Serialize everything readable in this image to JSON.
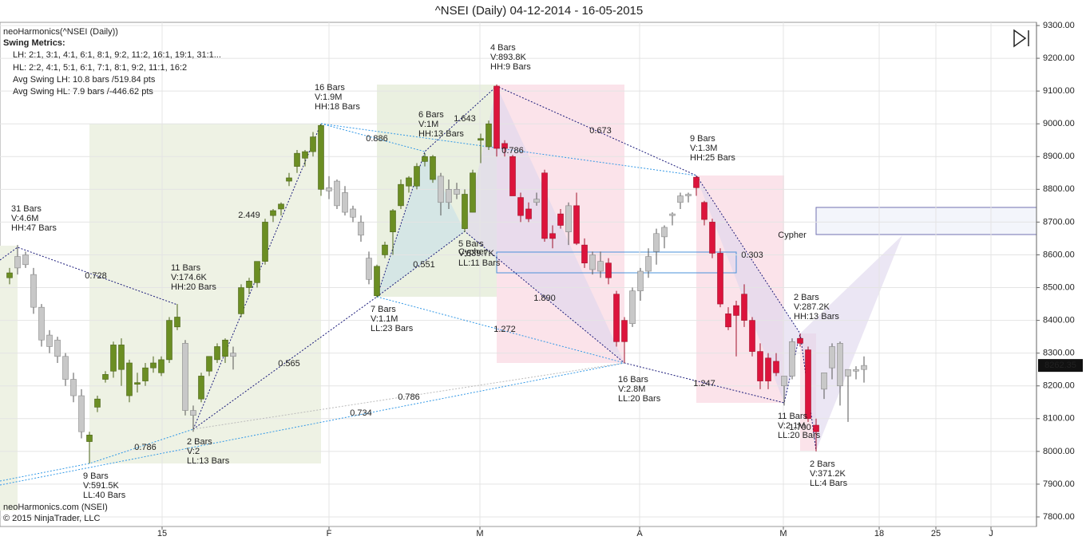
{
  "chart_data": {
    "type": "candlestick",
    "title": "^NSEI (Daily)  04-12-2014 - 16-05-2015",
    "indicator": "neoHarmonics(^NSEI (Daily))",
    "metrics_title": "Swing Metrics:",
    "metrics": [
      "LH: 2:1, 3:1, 4:1, 6:1, 8:1, 9:2, 11:2, 16:1, 19:1, 31:1...",
      "HL: 2:2, 4:1, 5:1, 6:1, 7:1, 8:1, 9:2, 11:1, 16:2",
      "Avg Swing LH: 10.8 bars /519.84 pts",
      "Avg Swing HL: 7.9 bars /-446.62 pts"
    ],
    "footer": [
      "neoHarmonics.com (NSEI)",
      "© 2015 NinjaTrader, LLC"
    ],
    "colors": {
      "up": "#6b8e23",
      "down": "#dc143c",
      "neutral": "#c8c8c8"
    },
    "candles": [
      [
        8530,
        8560,
        8510,
        8545
      ],
      [
        8560,
        8630,
        8540,
        8595
      ],
      [
        8600,
        8610,
        8560,
        8570
      ],
      [
        8540,
        8560,
        8420,
        8440
      ],
      [
        8440,
        8450,
        8320,
        8340
      ],
      [
        8355,
        8370,
        8300,
        8320
      ],
      [
        8340,
        8350,
        8270,
        8290
      ],
      [
        8290,
        8300,
        8200,
        8220
      ],
      [
        8220,
        8240,
        8150,
        8170
      ],
      [
        8170,
        8190,
        8040,
        8060
      ],
      [
        8030,
        8060,
        7963,
        8050
      ],
      [
        8135,
        8170,
        8120,
        8160
      ],
      [
        8220,
        8245,
        8210,
        8235
      ],
      [
        8245,
        8335,
        8225,
        8325
      ],
      [
        8250,
        8345,
        8200,
        8325
      ],
      [
        8170,
        8280,
        8150,
        8270
      ],
      [
        8205,
        8240,
        8180,
        8210
      ],
      [
        8215,
        8270,
        8200,
        8255
      ],
      [
        8255,
        8290,
        8240,
        8270
      ],
      [
        8240,
        8290,
        8230,
        8280
      ],
      [
        8280,
        8410,
        8270,
        8400
      ],
      [
        8380,
        8450,
        8370,
        8410
      ],
      [
        8330,
        8340,
        8110,
        8125
      ],
      [
        8125,
        8140,
        8060,
        8110
      ],
      [
        8160,
        8240,
        8150,
        8230
      ],
      [
        8245,
        8290,
        8230,
        8290
      ],
      [
        8280,
        8330,
        8270,
        8320
      ],
      [
        8290,
        8345,
        8270,
        8340
      ],
      [
        8300,
        8320,
        8250,
        8290
      ],
      [
        8420,
        8510,
        8410,
        8500
      ],
      [
        8500,
        8530,
        8480,
        8520
      ],
      [
        8515,
        8580,
        8500,
        8580
      ],
      [
        8580,
        8710,
        8570,
        8700
      ],
      [
        8720,
        8740,
        8700,
        8735
      ],
      [
        8740,
        8760,
        8720,
        8755
      ],
      [
        8825,
        8850,
        8810,
        8835
      ],
      [
        8870,
        8920,
        8850,
        8910
      ],
      [
        8895,
        8920,
        8870,
        8915
      ],
      [
        8915,
        8975,
        8900,
        8960
      ],
      [
        8800,
        9000,
        8780,
        8995
      ],
      [
        8805,
        8840,
        8770,
        8795
      ],
      [
        8825,
        8830,
        8740,
        8750
      ],
      [
        8790,
        8810,
        8720,
        8730
      ],
      [
        8740,
        8750,
        8700,
        8715
      ],
      [
        8700,
        8720,
        8640,
        8660
      ],
      [
        8590,
        8610,
        8510,
        8525
      ],
      [
        8475,
        8570,
        8470,
        8565
      ],
      [
        8600,
        8640,
        8590,
        8630
      ],
      [
        8670,
        8740,
        8600,
        8735
      ],
      [
        8750,
        8830,
        8740,
        8815
      ],
      [
        8810,
        8840,
        8790,
        8835
      ],
      [
        8810,
        8880,
        8800,
        8870
      ],
      [
        8885,
        8910,
        8870,
        8900
      ],
      [
        8830,
        8905,
        8820,
        8900
      ],
      [
        8840,
        8850,
        8720,
        8760
      ],
      [
        8800,
        8830,
        8740,
        8760
      ],
      [
        8800,
        8820,
        8770,
        8785
      ],
      [
        8680,
        8800,
        8670,
        8785
      ],
      [
        8730,
        8860,
        8730,
        8850
      ],
      [
        8950,
        8970,
        8880,
        8955
      ],
      [
        8930,
        9010,
        8920,
        9000
      ],
      [
        9115,
        9120,
        8900,
        8925
      ],
      [
        8940,
        8950,
        8900,
        8925
      ],
      [
        8900,
        8905,
        8780,
        8780
      ],
      [
        8775,
        8790,
        8700,
        8720
      ],
      [
        8740,
        8760,
        8700,
        8710
      ],
      [
        8770,
        8790,
        8750,
        8760
      ],
      [
        8850,
        8860,
        8640,
        8650
      ],
      [
        8665,
        8690,
        8620,
        8650
      ],
      [
        8725,
        8740,
        8680,
        8690
      ],
      [
        8670,
        8760,
        8630,
        8750
      ],
      [
        8750,
        8790,
        8630,
        8635
      ],
      [
        8630,
        8650,
        8560,
        8575
      ],
      [
        8600,
        8610,
        8540,
        8555
      ],
      [
        8580,
        8610,
        8530,
        8550
      ],
      [
        8575,
        8590,
        8510,
        8530
      ],
      [
        8480,
        8490,
        8320,
        8335
      ],
      [
        8400,
        8410,
        8270,
        8335
      ],
      [
        8390,
        8500,
        8380,
        8490
      ],
      [
        8490,
        8560,
        8460,
        8550
      ],
      [
        8550,
        8620,
        8530,
        8595
      ],
      [
        8610,
        8680,
        8570,
        8665
      ],
      [
        8655,
        8690,
        8620,
        8684
      ],
      [
        8720,
        8730,
        8690,
        8725
      ],
      [
        8760,
        8790,
        8740,
        8780
      ],
      [
        8780,
        8790,
        8760,
        8785
      ],
      [
        8837,
        8842,
        8780,
        8805
      ],
      [
        8760,
        8765,
        8690,
        8708
      ],
      [
        8700,
        8710,
        8590,
        8605
      ],
      [
        8605,
        8620,
        8440,
        8450
      ],
      [
        8420,
        8440,
        8370,
        8380
      ],
      [
        8445,
        8460,
        8290,
        8415
      ],
      [
        8480,
        8510,
        8380,
        8400
      ],
      [
        8400,
        8410,
        8290,
        8305
      ],
      [
        8305,
        8330,
        8190,
        8215
      ],
      [
        8285,
        8300,
        8190,
        8215
      ],
      [
        8275,
        8300,
        8230,
        8240
      ],
      [
        8200,
        8230,
        8140,
        8230
      ],
      [
        8230,
        8345,
        8220,
        8335
      ],
      [
        8345,
        8360,
        8320,
        8330
      ],
      [
        8310,
        8320,
        8090,
        8100
      ],
      [
        8080,
        8100,
        8000,
        8060
      ],
      [
        8190,
        8240,
        8160,
        8240
      ],
      [
        8255,
        8330,
        8220,
        8320
      ],
      [
        8330,
        8335,
        8140,
        8200
      ],
      [
        8230,
        8250,
        8090,
        8250
      ],
      [
        8245,
        8260,
        8220,
        8250
      ],
      [
        8250,
        8290,
        8210,
        8262.35
      ]
    ],
    "trend": [
      "up",
      "neutral",
      "neutral",
      "neutral",
      "neutral",
      "neutral",
      "neutral",
      "neutral",
      "neutral",
      "neutral",
      "up",
      "up",
      "up",
      "up",
      "up",
      "up",
      "up",
      "up",
      "up",
      "up",
      "up",
      "up",
      "neutral",
      "neutral",
      "up",
      "up",
      "up",
      "up",
      "neutral",
      "up",
      "up",
      "up",
      "up",
      "up",
      "up",
      "up",
      "up",
      "up",
      "up",
      "up",
      "neutral",
      "neutral",
      "neutral",
      "neutral",
      "neutral",
      "neutral",
      "up",
      "up",
      "up",
      "up",
      "up",
      "up",
      "up",
      "up",
      "neutral",
      "neutral",
      "neutral",
      "up",
      "up",
      "up",
      "up",
      "down",
      "down",
      "down",
      "down",
      "down",
      "neutral",
      "down",
      "down",
      "down",
      "neutral",
      "down",
      "down",
      "neutral",
      "neutral",
      "down",
      "down",
      "down",
      "neutral",
      "neutral",
      "neutral",
      "neutral",
      "neutral",
      "neutral",
      "neutral",
      "neutral",
      "down",
      "down",
      "down",
      "down",
      "down",
      "down",
      "down",
      "down",
      "down",
      "down",
      "down",
      "neutral",
      "neutral",
      "down",
      "down",
      "down",
      "neutral",
      "neutral",
      "neutral",
      "neutral",
      "neutral",
      "neutral"
    ],
    "xlim": [
      -1.2,
      128.6
    ],
    "xticks": [
      {
        "value": 19.1,
        "label": "15"
      },
      {
        "value": 40,
        "label": "F"
      },
      {
        "value": 58.9,
        "label": "M"
      },
      {
        "value": 78.9,
        "label": "A"
      },
      {
        "value": 96.9,
        "label": "M"
      },
      {
        "value": 108.9,
        "label": "18"
      },
      {
        "value": 116,
        "label": "25"
      },
      {
        "value": 122.9,
        "label": "J"
      }
    ],
    "ylim": [
      7800,
      9300
    ],
    "yticks": [
      {
        "value": 7800,
        "label": "7800.00"
      },
      {
        "value": 7900,
        "label": "7900.00"
      },
      {
        "value": 8000,
        "label": "8000.00"
      },
      {
        "value": 8100,
        "label": "8100.00"
      },
      {
        "value": 8200,
        "label": "8200.00"
      },
      {
        "value": 8300,
        "label": "8300.00"
      },
      {
        "value": 8400,
        "label": "8400.00"
      },
      {
        "value": 8500,
        "label": "8500.00"
      },
      {
        "value": 8600,
        "label": "8600.00"
      },
      {
        "value": 8700,
        "label": "8700.00"
      },
      {
        "value": 8800,
        "label": "8800.00"
      },
      {
        "value": 8900,
        "label": "8900.00"
      },
      {
        "value": 9000,
        "label": "9000.00"
      },
      {
        "value": 9100,
        "label": "9100.00"
      },
      {
        "value": 9200,
        "label": "9200.00"
      },
      {
        "value": 9300,
        "label": "9300.00"
      }
    ],
    "grid": true,
    "swing_labels": [
      [
        "31 Bars",
        "V:4.6M",
        "HH:47 Bars"
      ],
      [
        "11 Bars",
        "V:174.6K",
        "HH:20 Bars"
      ],
      [
        "16 Bars",
        "V:1.9M",
        "HH:18 Bars"
      ],
      [
        "6 Bars",
        "V:1M",
        "HH:13 Bars"
      ],
      [
        "4 Bars",
        "V:893.8K",
        "HH:9 Bars"
      ],
      [
        "9 Bars",
        "V:1.3M",
        "HH:25 Bars"
      ],
      [
        "2 Bars",
        "V:287.2K",
        "HH:13 Bars"
      ],
      [
        "5 Bars",
        "V:839.7K",
        "LL:11 Bars"
      ],
      [
        "7 Bars",
        "V:1.1M",
        "LL:23 Bars"
      ],
      [
        "16 Bars",
        "V:2.8M",
        "LL:20 Bars"
      ],
      [
        "11 Bars",
        "V:2.1M",
        "LL:20 Bars"
      ],
      [
        "2 Bars",
        "V:371.2K",
        "LL:4 Bars"
      ],
      [
        "2 Bars",
        "V:2",
        "LL:13 Bars"
      ],
      [
        "9 Bars",
        "V:591.5K",
        "LL:40 Bars"
      ]
    ],
    "ratios": [
      "0.728",
      "2.449",
      "0.565",
      "1.643",
      "0.551",
      "0.673",
      "1.890",
      "1.247",
      "0.303",
      "1.700",
      "0.886",
      "0.786",
      "0.786",
      "0.786",
      "1.272",
      "0.734"
    ],
    "patterns": [
      "Cypher",
      "Cypher"
    ]
  }
}
